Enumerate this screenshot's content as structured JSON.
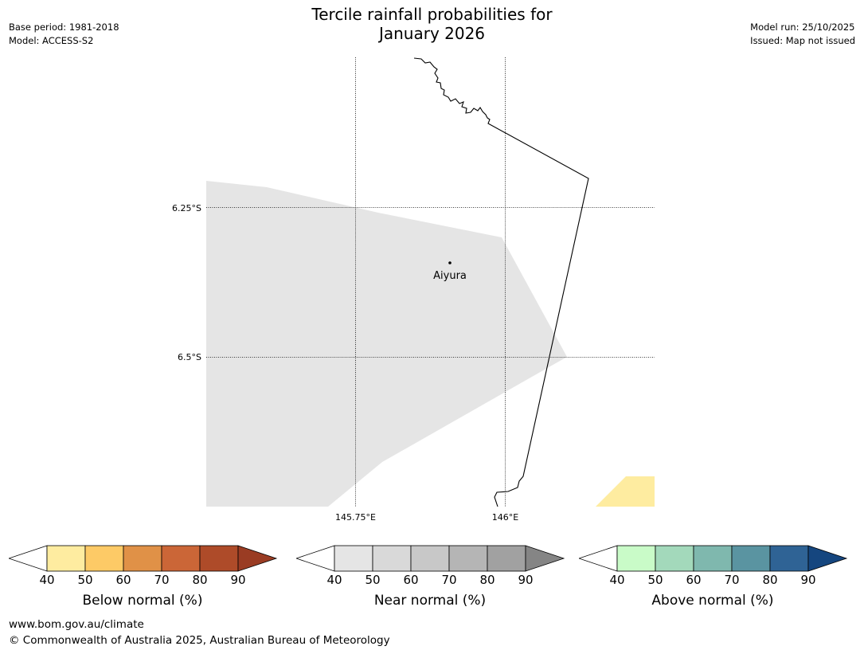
{
  "header": {
    "title_line1": "Tercile rainfall probabilities for",
    "title_line2": "January 2026",
    "base_period": "Base period: 1981-2018",
    "model": "Model: ACCESS-S2",
    "model_run": "Model run: 25/10/2025",
    "issued": "Issued: Map not issued"
  },
  "map": {
    "lat_labels": [
      "6.25°S",
      "6.5°S"
    ],
    "lon_labels": [
      "145.75°E",
      "146°E"
    ],
    "place": "Aiyura",
    "colors": {
      "near_normal_40": "#e5e5e5",
      "below_normal_40": "#feeca0",
      "coastline": "#000000"
    }
  },
  "legends": [
    {
      "label": "Below normal (%)",
      "ticks": [
        "40",
        "50",
        "60",
        "70",
        "80",
        "90"
      ],
      "colors": [
        "#ffffff",
        "#feeca0",
        "#fdca66",
        "#e09147",
        "#cb6637",
        "#ae4b29",
        "#9a3c23"
      ]
    },
    {
      "label": "Near normal (%)",
      "ticks": [
        "40",
        "50",
        "60",
        "70",
        "80",
        "90"
      ],
      "colors": [
        "#ffffff",
        "#e5e5e5",
        "#d9d9d9",
        "#c8c8c8",
        "#b5b5b5",
        "#a1a1a1",
        "#858585"
      ]
    },
    {
      "label": "Above normal (%)",
      "ticks": [
        "40",
        "50",
        "60",
        "70",
        "80",
        "90"
      ],
      "colors": [
        "#ffffff",
        "#c9fbc8",
        "#a3d9bb",
        "#7fb8ae",
        "#5a94a1",
        "#2f6395",
        "#15467f"
      ]
    }
  ],
  "footer": {
    "url": "www.bom.gov.au/climate",
    "copyright": "© Commonwealth of Australia 2025, Australian Bureau of Meteorology"
  }
}
